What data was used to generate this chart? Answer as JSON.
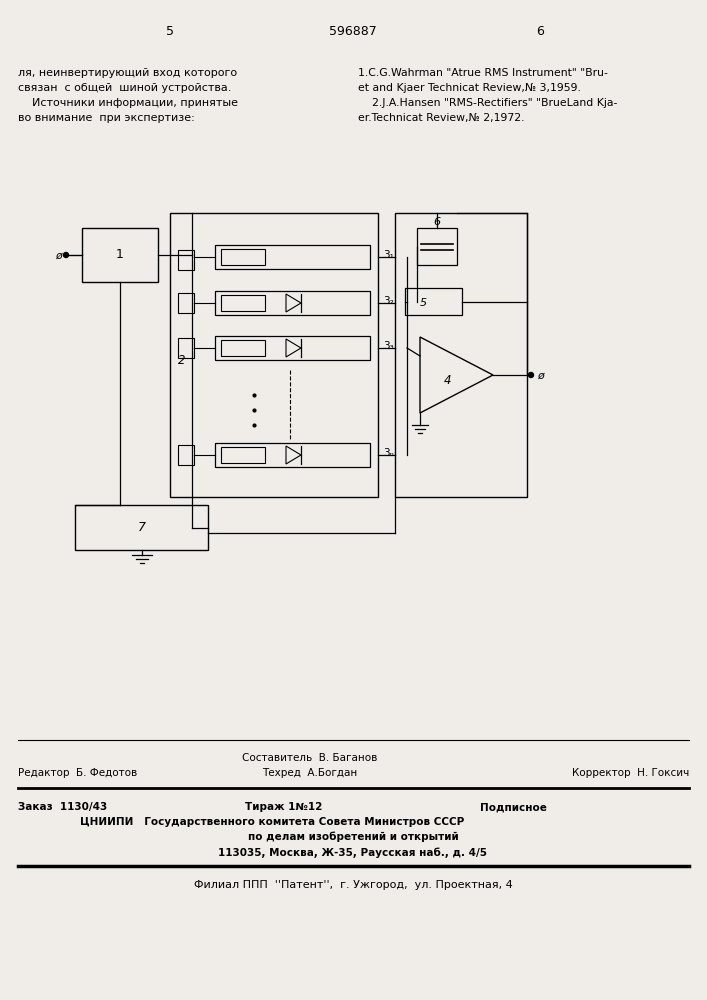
{
  "bg_color": "#f0ede8",
  "page_number_left": "5",
  "page_number_center": "596887",
  "page_number_right": "6",
  "left_text_lines": [
    "ля, неинвертирующий вход которого",
    "связан  с общей  шиной устройства.",
    "    Источники информации, принятые",
    "во внимание  при экспертизе:"
  ],
  "right_text_lines": [
    "1.C.G.Wahrman \"Atrue RMS Instrument\" \"Bru-",
    "et and Kjaer Technicat Review,№ 3,1959.",
    "    2.J.A.Hansen \"RMS-Rectifiers\" \"BrueLand Kja-",
    "er.Technicat Review,№ 2,1972."
  ],
  "footer_cniip1": "ЦНИИПИ   Государственного комитета Совета Министров СССР",
  "footer_cniip2": "по делам изобретений и открытий",
  "footer_cniip3": "113035, Москва, Ж-35, Раусская наб., д. 4/5",
  "footer_filial": "Филиал ППП  ''Патент'',  г. Ужгород,  ул. Проектная, 4"
}
